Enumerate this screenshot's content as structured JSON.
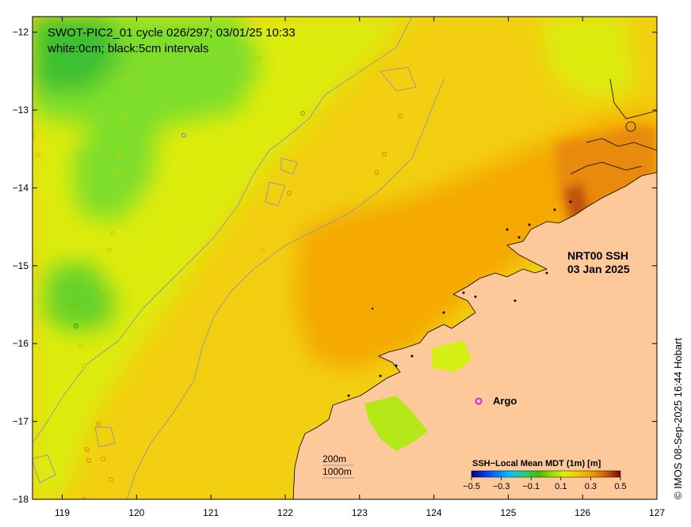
{
  "title": {
    "line1": "SWOT-PIC2_01 cycle 026/297; 03/01/25 10:33",
    "line2": "white:0cm; black:5cm intervals"
  },
  "product": {
    "line1": "NRT00 SSH",
    "line2": "03 Jan 2025"
  },
  "argo_label": "Argo",
  "argo_marker_color": "#e020e0",
  "scale_legend": {
    "line1": "200m",
    "line2": "1000m"
  },
  "colorbar": {
    "title": "SSH−Local Mean MDT (1m) [m]",
    "ticks": [
      "−0.5",
      "−0.3",
      "−0.1",
      "0.1",
      "0.3",
      "0.5"
    ],
    "colors": [
      "#000080",
      "#0040ff",
      "#00c0ff",
      "#20d080",
      "#40c000",
      "#a0e000",
      "#e0f000",
      "#f0d000",
      "#f0a000",
      "#d06000",
      "#a02000",
      "#800000"
    ]
  },
  "credit": "© IMOS 08-Sep-2025 16:44 Hobart",
  "x_axis": {
    "ticks": [
      "119",
      "120",
      "121",
      "122",
      "123",
      "124",
      "125",
      "126",
      "127"
    ]
  },
  "y_axis": {
    "ticks": [
      "−12",
      "−13",
      "−14",
      "−15",
      "−16",
      "−17",
      "−18"
    ]
  },
  "colors": {
    "land": "#fdc99a",
    "ocean_base": "#f4d000",
    "high": "#f5a800",
    "low_green": "#66dd22",
    "lower_green": "#33bb22",
    "isobath": "#a0a0a0",
    "coast": "#000000"
  }
}
